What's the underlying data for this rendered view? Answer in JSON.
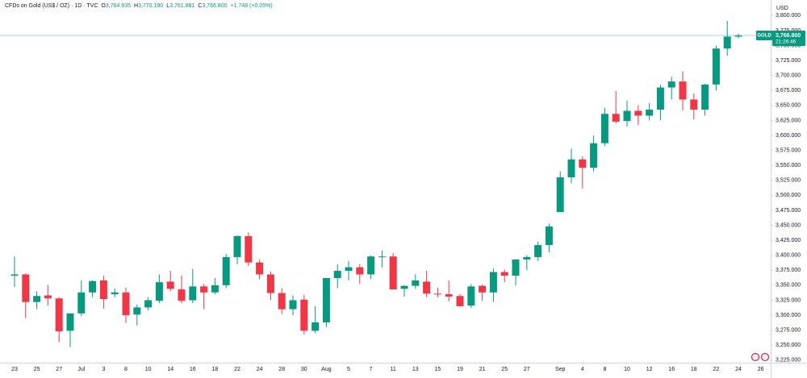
{
  "header": {
    "symbol": "CFDs on Gold (US$ / OZ) · 1D · TVC",
    "ohlc": [
      {
        "key": "O",
        "value": "3,764.935"
      },
      {
        "key": "H",
        "value": "3,770.190"
      },
      {
        "key": "L",
        "value": "3,761.881"
      },
      {
        "key": "C",
        "value": "3,766.800"
      }
    ],
    "change": "+1.748 (+0.05%)"
  },
  "chart_data": {
    "type": "candlestick",
    "categories": [
      "23",
      null,
      "25",
      null,
      "27",
      null,
      "Jul",
      null,
      "3",
      null,
      "8",
      null,
      "10",
      null,
      "14",
      null,
      "16",
      null,
      "18",
      null,
      "22",
      null,
      "24",
      null,
      "28",
      null,
      "30",
      null,
      "Aug",
      null,
      "5",
      null,
      "7",
      null,
      "11",
      null,
      "13",
      null,
      "15",
      null,
      "19",
      null,
      "21",
      null,
      "25",
      null,
      "27",
      null,
      null,
      "Sep",
      null,
      "4",
      null,
      "8",
      null,
      "10",
      null,
      "12",
      null,
      "16",
      null,
      "18",
      null,
      "22",
      null,
      "24",
      null,
      "26"
    ],
    "open": [
      3366,
      3368,
      3322,
      3333,
      3328,
      3274,
      3303,
      3338,
      3358,
      3335,
      3338,
      3301,
      3313,
      3324,
      3356,
      3343,
      3325,
      3348,
      3338,
      3350,
      3397,
      3432,
      3388,
      3368,
      3337,
      3310,
      3326,
      3274,
      3288,
      3362,
      3374,
      3380,
      3368,
      3397,
      3398,
      3344,
      3349,
      3356,
      3336,
      3335,
      3332,
      3316,
      3349,
      3338,
      3372,
      3366,
      3393,
      3397,
      3417,
      3472,
      3530,
      3560,
      3546,
      3587,
      3636,
      3624,
      3641,
      3633,
      3643,
      3680,
      3690,
      3660,
      3643,
      3685,
      3745,
      3764.935,
      null,
      null
    ],
    "high": [
      3398,
      3370,
      3340,
      3350,
      3330,
      3300,
      3358,
      3358,
      3366,
      3345,
      3346,
      3318,
      3330,
      3368,
      3374,
      3366,
      3377,
      3352,
      3362,
      3402,
      3433,
      3438,
      3393,
      3373,
      3345,
      3333,
      3334,
      3315,
      3362,
      3385,
      3390,
      3385,
      3400,
      3408,
      3404,
      3350,
      3368,
      3374,
      3346,
      3358,
      3335,
      3352,
      3351,
      3378,
      3376,
      3393,
      3400,
      3423,
      3453,
      3540,
      3578,
      3565,
      3600,
      3646,
      3674,
      3658,
      3650,
      3654,
      3685,
      3698,
      3707,
      3670,
      3686,
      3750,
      3791,
      3770.19,
      null,
      null
    ],
    "low": [
      3347,
      3295,
      3310,
      3316,
      3255,
      3247,
      3298,
      3330,
      3311,
      3330,
      3287,
      3283,
      3308,
      3320,
      3340,
      3320,
      3320,
      3310,
      3335,
      3345,
      3385,
      3382,
      3360,
      3325,
      3302,
      3300,
      3268,
      3270,
      3280,
      3345,
      3358,
      3352,
      3360,
      3380,
      3343,
      3331,
      3344,
      3330,
      3330,
      3323,
      3315,
      3312,
      3324,
      3322,
      3355,
      3350,
      3375,
      3390,
      3405,
      3473,
      3520,
      3511,
      3540,
      3582,
      3620,
      3615,
      3617,
      3625,
      3625,
      3660,
      3642,
      3627,
      3633,
      3675,
      3733,
      3761.881,
      null,
      null
    ],
    "close": [
      3368,
      3322,
      3332,
      3328,
      3273,
      3303,
      3338,
      3357,
      3327,
      3338,
      3300,
      3313,
      3325,
      3355,
      3344,
      3324,
      3348,
      3338,
      3350,
      3397,
      3432,
      3388,
      3368,
      3337,
      3310,
      3325,
      3274,
      3288,
      3362,
      3374,
      3380,
      3368,
      3398,
      3398,
      3343,
      3349,
      3358,
      3336,
      3335,
      3331,
      3315,
      3348,
      3338,
      3372,
      3366,
      3393,
      3397,
      3417,
      3448,
      3530,
      3560,
      3546,
      3587,
      3636,
      3623,
      3641,
      3633,
      3643,
      3680,
      3690,
      3660,
      3643,
      3685,
      3745,
      3765,
      3766.8,
      null,
      null
    ],
    "up_color": "#089981",
    "down_color": "#f23645",
    "ylim": [
      3214,
      3826
    ],
    "yticks": [
      {
        "value": 3225,
        "label": "3,225.000"
      },
      {
        "value": 3250,
        "label": "3,250.000"
      },
      {
        "value": 3275,
        "label": "3,275.000"
      },
      {
        "value": 3300,
        "label": "3,300.000"
      },
      {
        "value": 3325,
        "label": "3,325.000"
      },
      {
        "value": 3350,
        "label": "3,350.000"
      },
      {
        "value": 3375,
        "label": "3,375.000"
      },
      {
        "value": 3400,
        "label": "3,400.000"
      },
      {
        "value": 3425,
        "label": "3,425.000"
      },
      {
        "value": 3450,
        "label": "3,450.000"
      },
      {
        "value": 3475,
        "label": "3,475.000"
      },
      {
        "value": 3500,
        "label": "3,500.000"
      },
      {
        "value": 3525,
        "label": "3,525.000"
      },
      {
        "value": 3550,
        "label": "3,550.000"
      },
      {
        "value": 3575,
        "label": "3,575.000"
      },
      {
        "value": 3600,
        "label": "3,600.000"
      },
      {
        "value": 3625,
        "label": "3,625.000"
      },
      {
        "value": 3650,
        "label": "3,650.000"
      },
      {
        "value": 3675,
        "label": "3,675.000"
      },
      {
        "value": 3700,
        "label": "3,700.000"
      },
      {
        "value": 3725,
        "label": "3,725.000"
      },
      {
        "value": 3750,
        "label": "3,750.000"
      },
      {
        "value": 3775,
        "label": "3,775.000"
      },
      {
        "value": 3800,
        "label": "3,800.000"
      }
    ],
    "y_axis_unit": "USD",
    "last_price": {
      "value": 3766.8,
      "label": "3,766.800"
    },
    "symbol_tag": "GOLD",
    "countdown": "21:26:46"
  }
}
